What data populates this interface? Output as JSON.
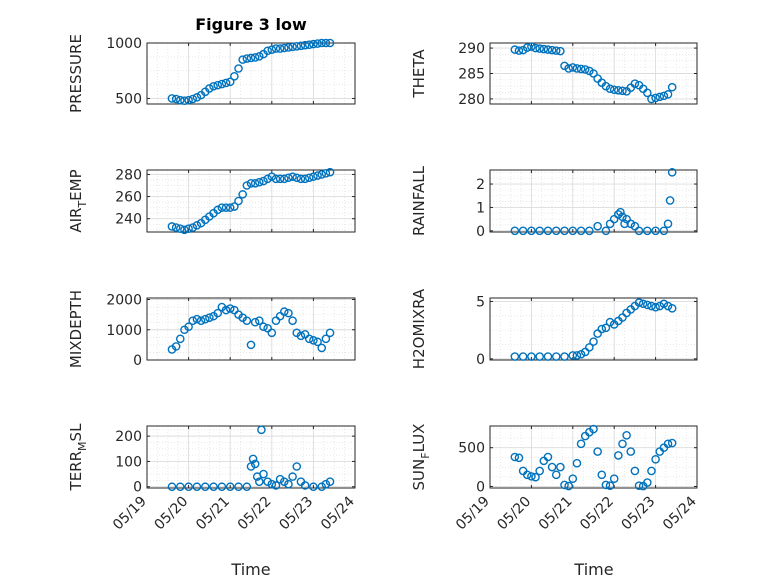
{
  "figure_title": "Figure 3 low",
  "colors": {
    "marker": "#0072BD",
    "axis": "#262626",
    "grid": "#dcdcdc"
  },
  "chart_data": [
    {
      "type": "scatter",
      "ylabel_main": "PRESSURE",
      "ylabel_sub": "",
      "ylabel_tail": "",
      "ylim": [
        450,
        1000
      ],
      "yticks": [
        500,
        1000
      ],
      "yticklabels": [
        "500",
        "1000"
      ],
      "xlim": [
        "05/19",
        "05/24"
      ],
      "grid": true,
      "x": [
        19.6,
        19.7,
        19.8,
        19.9,
        20.0,
        20.1,
        20.2,
        20.3,
        20.4,
        20.5,
        20.6,
        20.7,
        20.8,
        20.9,
        21.0,
        21.1,
        21.2,
        21.3,
        21.4,
        21.5,
        21.6,
        21.7,
        21.8,
        21.9,
        22.0,
        22.1,
        22.2,
        22.3,
        22.4,
        22.5,
        22.6,
        22.7,
        22.8,
        22.9,
        23.0,
        23.1,
        23.2,
        23.3,
        23.4
      ],
      "y": [
        500,
        495,
        485,
        480,
        485,
        495,
        510,
        530,
        560,
        590,
        610,
        620,
        630,
        640,
        650,
        700,
        770,
        850,
        860,
        865,
        870,
        880,
        900,
        930,
        940,
        950,
        950,
        955,
        960,
        965,
        970,
        975,
        980,
        985,
        990,
        995,
        1000,
        1005,
        1010
      ]
    },
    {
      "type": "scatter",
      "ylabel_main": "THETA",
      "ylabel_sub": "",
      "ylabel_tail": "",
      "ylim": [
        279,
        291
      ],
      "yticks": [
        280,
        285,
        290
      ],
      "yticklabels": [
        "280",
        "285",
        "290"
      ],
      "xlim": [
        "05/19",
        "05/24"
      ],
      "grid": true,
      "x": [
        19.6,
        19.7,
        19.8,
        19.9,
        20.0,
        20.1,
        20.2,
        20.3,
        20.4,
        20.5,
        20.6,
        20.7,
        20.8,
        20.9,
        21.0,
        21.1,
        21.2,
        21.3,
        21.4,
        21.5,
        21.6,
        21.7,
        21.8,
        21.9,
        22.0,
        22.1,
        22.2,
        22.3,
        22.4,
        22.5,
        22.6,
        22.7,
        22.8,
        22.9,
        23.0,
        23.1,
        23.2,
        23.3,
        23.4
      ],
      "y": [
        289.7,
        289.5,
        289.6,
        290.1,
        290.3,
        290.0,
        289.9,
        289.8,
        289.7,
        289.6,
        289.5,
        289.4,
        286.5,
        286.0,
        286.2,
        286.0,
        285.9,
        285.8,
        285.5,
        285.0,
        284.0,
        283.2,
        282.5,
        282.0,
        281.8,
        281.7,
        281.6,
        281.5,
        282.2,
        283.0,
        282.7,
        282.0,
        281.2,
        280.0,
        280.2,
        280.4,
        280.6,
        280.9,
        282.3
      ]
    },
    {
      "type": "scatter",
      "ylabel_main": "AIR",
      "ylabel_sub": "T",
      "ylabel_tail": "EMP",
      "ylim": [
        228,
        284
      ],
      "yticks": [
        240,
        260,
        280
      ],
      "yticklabels": [
        "240",
        "260",
        "280"
      ],
      "xlim": [
        "05/19",
        "05/24"
      ],
      "grid": true,
      "x": [
        19.6,
        19.7,
        19.8,
        19.9,
        20.0,
        20.1,
        20.2,
        20.3,
        20.4,
        20.5,
        20.6,
        20.7,
        20.8,
        20.9,
        21.0,
        21.1,
        21.2,
        21.3,
        21.4,
        21.5,
        21.6,
        21.7,
        21.8,
        21.9,
        22.0,
        22.1,
        22.2,
        22.3,
        22.4,
        22.5,
        22.6,
        22.7,
        22.8,
        22.9,
        23.0,
        23.1,
        23.2,
        23.3,
        23.4
      ],
      "y": [
        233,
        232,
        231,
        230,
        231,
        232,
        234,
        236,
        239,
        242,
        245,
        248,
        250,
        250,
        250,
        251,
        256,
        262,
        270,
        272,
        272,
        273,
        274,
        276,
        278,
        276,
        276,
        276,
        277,
        278,
        277,
        276,
        276,
        277,
        278,
        279,
        280,
        281,
        282
      ]
    },
    {
      "type": "scatter",
      "ylabel_main": "RAINFALL",
      "ylabel_sub": "",
      "ylabel_tail": "",
      "ylim": [
        -0.05,
        2.6
      ],
      "yticks": [
        0,
        1,
        2
      ],
      "yticklabels": [
        "0",
        "1",
        "2"
      ],
      "xlim": [
        "05/19",
        "05/24"
      ],
      "grid": true,
      "x": [
        19.6,
        19.8,
        20.0,
        20.2,
        20.4,
        20.6,
        20.8,
        21.0,
        21.2,
        21.4,
        21.6,
        21.8,
        21.9,
        22.0,
        22.1,
        22.15,
        22.2,
        22.25,
        22.3,
        22.4,
        22.5,
        22.6,
        22.8,
        23.0,
        23.2,
        23.3,
        23.35,
        23.4
      ],
      "y": [
        0,
        0,
        0,
        0,
        0,
        0,
        0,
        0,
        0,
        0,
        0.2,
        0,
        0.3,
        0.5,
        0.7,
        0.8,
        0.6,
        0.3,
        0.5,
        0.3,
        0.2,
        0,
        0,
        0,
        0,
        0.3,
        1.3,
        2.5
      ]
    },
    {
      "type": "scatter",
      "ylabel_main": "MIXDEPTH",
      "ylabel_sub": "",
      "ylabel_tail": "",
      "ylim": [
        0,
        2050
      ],
      "yticks": [
        0,
        1000,
        2000
      ],
      "yticklabels": [
        "0",
        "1000",
        "2000"
      ],
      "xlim": [
        "05/19",
        "05/24"
      ],
      "grid": true,
      "x": [
        19.6,
        19.7,
        19.8,
        19.9,
        20.0,
        20.1,
        20.2,
        20.3,
        20.4,
        20.5,
        20.6,
        20.7,
        20.8,
        20.9,
        21.0,
        21.1,
        21.2,
        21.3,
        21.4,
        21.5,
        21.6,
        21.7,
        21.8,
        21.9,
        22.0,
        22.1,
        22.2,
        22.3,
        22.4,
        22.5,
        22.6,
        22.7,
        22.8,
        22.9,
        23.0,
        23.1,
        23.2,
        23.3,
        23.4
      ],
      "y": [
        350,
        450,
        700,
        1000,
        1100,
        1300,
        1350,
        1300,
        1350,
        1400,
        1450,
        1550,
        1750,
        1650,
        1700,
        1650,
        1500,
        1400,
        1300,
        500,
        1250,
        1300,
        1100,
        1050,
        900,
        1300,
        1450,
        1600,
        1550,
        1300,
        900,
        800,
        850,
        700,
        650,
        600,
        400,
        700,
        900
      ]
    },
    {
      "type": "scatter",
      "ylabel_main": "H2OMIXRA",
      "ylabel_sub": "",
      "ylabel_tail": "",
      "ylim": [
        -0.1,
        5.3
      ],
      "yticks": [
        0,
        5
      ],
      "yticklabels": [
        "0",
        "5"
      ],
      "xlim": [
        "05/19",
        "05/24"
      ],
      "grid": true,
      "x": [
        19.6,
        19.8,
        20.0,
        20.2,
        20.4,
        20.6,
        20.8,
        21.0,
        21.1,
        21.2,
        21.3,
        21.4,
        21.5,
        21.6,
        21.7,
        21.8,
        21.9,
        22.0,
        22.1,
        22.2,
        22.3,
        22.4,
        22.5,
        22.6,
        22.7,
        22.8,
        22.9,
        23.0,
        23.1,
        23.2,
        23.3,
        23.4
      ],
      "y": [
        0.2,
        0.2,
        0.2,
        0.2,
        0.2,
        0.2,
        0.2,
        0.3,
        0.3,
        0.4,
        0.6,
        1.0,
        1.5,
        2.2,
        2.6,
        2.7,
        3.2,
        3.0,
        3.3,
        3.6,
        4.0,
        4.3,
        4.6,
        4.9,
        4.8,
        4.7,
        4.6,
        4.5,
        4.6,
        4.8,
        4.6,
        4.4
      ]
    },
    {
      "type": "scatter",
      "ylabel_main": "TERR",
      "ylabel_sub": "M",
      "ylabel_tail": "SL",
      "ylim": [
        -5,
        240
      ],
      "yticks": [
        0,
        100,
        200
      ],
      "yticklabels": [
        "0",
        "100",
        "200"
      ],
      "xlim": [
        "05/19",
        "05/24"
      ],
      "grid": true,
      "x": [
        19.6,
        19.8,
        20.0,
        20.2,
        20.4,
        20.6,
        20.8,
        21.0,
        21.2,
        21.4,
        21.5,
        21.55,
        21.6,
        21.65,
        21.7,
        21.75,
        21.8,
        21.9,
        22.0,
        22.1,
        22.2,
        22.3,
        22.4,
        22.5,
        22.6,
        22.7,
        22.8,
        23.0,
        23.2,
        23.3,
        23.4
      ],
      "y": [
        0,
        0,
        0,
        0,
        0,
        0,
        0,
        0,
        0,
        0,
        80,
        110,
        90,
        40,
        20,
        225,
        50,
        20,
        10,
        5,
        30,
        20,
        10,
        40,
        80,
        20,
        5,
        0,
        0,
        10,
        20
      ]
    },
    {
      "type": "scatter",
      "ylabel_main": "SUN",
      "ylabel_sub": "F",
      "ylabel_tail": "LUX",
      "ylim": [
        -20,
        780
      ],
      "yticks": [
        0,
        500
      ],
      "yticklabels": [
        "0",
        "500"
      ],
      "xlim": [
        "05/19",
        "05/24"
      ],
      "grid": true,
      "x": [
        19.6,
        19.7,
        19.8,
        19.9,
        20.0,
        20.1,
        20.2,
        20.3,
        20.4,
        20.5,
        20.6,
        20.7,
        20.8,
        20.9,
        21.0,
        21.1,
        21.2,
        21.3,
        21.4,
        21.5,
        21.6,
        21.7,
        21.8,
        21.9,
        22.0,
        22.1,
        22.2,
        22.3,
        22.4,
        22.5,
        22.6,
        22.7,
        22.8,
        22.9,
        23.0,
        23.1,
        23.2,
        23.3,
        23.4
      ],
      "y": [
        380,
        370,
        200,
        150,
        130,
        120,
        200,
        330,
        380,
        250,
        150,
        250,
        20,
        5,
        100,
        300,
        550,
        650,
        700,
        740,
        450,
        150,
        20,
        10,
        100,
        400,
        550,
        660,
        450,
        200,
        10,
        5,
        50,
        200,
        350,
        450,
        500,
        550,
        560
      ]
    }
  ],
  "xticklabels": [
    "05/19",
    "05/20",
    "05/21",
    "05/22",
    "05/23",
    "05/24"
  ],
  "xlabel": "Time"
}
